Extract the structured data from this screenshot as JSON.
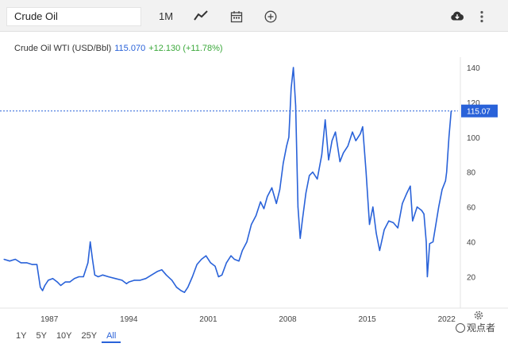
{
  "toolbar": {
    "search_value": "Crude Oil",
    "period_label": "1M",
    "icons": [
      "line-chart-icon",
      "calendar-icon",
      "add-compare-icon",
      "download-icon",
      "more-vertical-icon"
    ]
  },
  "legend": {
    "instrument": "Crude Oil WTI (USD/Bbl)",
    "price": "115.070",
    "change": "+12.130 (+11.78%)",
    "price_color": "#2962d9",
    "change_color": "#3aa83a"
  },
  "ranges": [
    {
      "label": "1Y",
      "active": false
    },
    {
      "label": "5Y",
      "active": false
    },
    {
      "label": "10Y",
      "active": false
    },
    {
      "label": "25Y",
      "active": false
    },
    {
      "label": "All",
      "active": true
    }
  ],
  "watermark": "观点者",
  "chart_data": {
    "type": "line",
    "title": "",
    "xlabel": "",
    "ylabel": "",
    "x_ticks": [
      "1987",
      "1994",
      "2001",
      "2008",
      "2015",
      "2022"
    ],
    "y_ticks": [
      20,
      40,
      60,
      80,
      100,
      120,
      140
    ],
    "xlim": [
      1983.0,
      2023.0
    ],
    "ylim": [
      2,
      145
    ],
    "grid": false,
    "last_value_label": "115.07",
    "line_color": "#2962d9",
    "series": [
      {
        "x": [
          1983.0,
          1983.5,
          1984.0,
          1984.5,
          1985.0,
          1985.5,
          1985.9,
          1986.2,
          1986.4,
          1986.6,
          1986.9,
          1987.3,
          1987.7,
          1988.0,
          1988.4,
          1988.8,
          1989.2,
          1989.6,
          1990.0,
          1990.4,
          1990.6,
          1990.8,
          1991.0,
          1991.3,
          1991.7,
          1992.2,
          1992.8,
          1993.4,
          1993.8,
          1994.0,
          1994.5,
          1995.0,
          1995.5,
          1996.0,
          1996.5,
          1996.9,
          1997.3,
          1997.8,
          1998.2,
          1998.6,
          1998.9,
          1999.2,
          1999.6,
          2000.0,
          2000.4,
          2000.8,
          2001.2,
          2001.6,
          2001.9,
          2002.2,
          2002.6,
          2003.0,
          2003.3,
          2003.7,
          2004.0,
          2004.4,
          2004.8,
          2005.2,
          2005.6,
          2005.9,
          2006.2,
          2006.6,
          2007.0,
          2007.3,
          2007.6,
          2007.9,
          2008.1,
          2008.3,
          2008.5,
          2008.7,
          2008.9,
          2009.1,
          2009.3,
          2009.6,
          2009.9,
          2010.2,
          2010.6,
          2011.0,
          2011.3,
          2011.6,
          2011.9,
          2012.2,
          2012.6,
          2012.9,
          2013.3,
          2013.7,
          2014.0,
          2014.4,
          2014.6,
          2014.9,
          2015.2,
          2015.5,
          2015.8,
          2016.1,
          2016.5,
          2016.9,
          2017.3,
          2017.7,
          2018.1,
          2018.5,
          2018.8,
          2019.0,
          2019.4,
          2019.8,
          2020.0,
          2020.2,
          2020.3,
          2020.5,
          2020.8,
          2021.0,
          2021.3,
          2021.6,
          2021.9,
          2022.0,
          2022.2,
          2022.4
        ],
        "y": [
          30,
          29,
          30,
          28,
          28,
          27,
          27,
          14,
          12,
          15,
          18,
          19,
          17,
          15,
          17,
          17,
          19,
          20,
          20,
          28,
          40,
          30,
          21,
          20,
          21,
          20,
          19,
          18,
          16,
          17,
          18,
          18,
          19,
          21,
          23,
          24,
          21,
          18,
          14,
          12,
          11,
          14,
          20,
          27,
          30,
          32,
          28,
          26,
          20,
          21,
          28,
          32,
          30,
          29,
          35,
          40,
          50,
          55,
          63,
          59,
          66,
          71,
          62,
          70,
          85,
          95,
          100,
          128,
          140,
          118,
          60,
          42,
          53,
          68,
          78,
          80,
          76,
          90,
          110,
          87,
          98,
          103,
          86,
          91,
          95,
          103,
          98,
          102,
          106,
          80,
          50,
          60,
          45,
          35,
          47,
          52,
          51,
          48,
          62,
          68,
          72,
          52,
          60,
          58,
          56,
          40,
          20,
          39,
          40,
          48,
          60,
          70,
          75,
          80,
          100,
          115
        ]
      }
    ]
  }
}
